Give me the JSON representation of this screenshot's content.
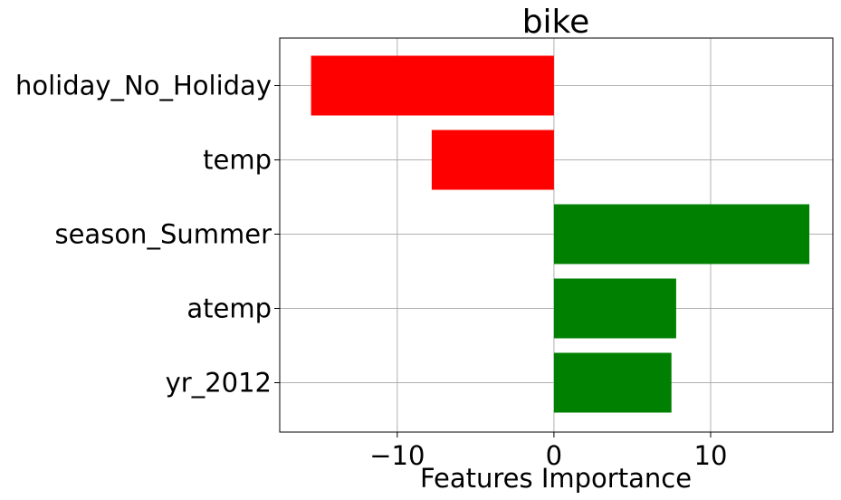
{
  "chart_data": {
    "type": "bar",
    "orientation": "horizontal",
    "title": "bike",
    "xlabel": "Features Importance",
    "ylabel": "",
    "categories": [
      "holiday_No_Holiday",
      "temp",
      "season_Summer",
      "atemp",
      "yr_2012"
    ],
    "values": [
      -15.5,
      -7.8,
      16.3,
      7.8,
      7.5
    ],
    "xlim": [
      -17.5,
      17.8
    ],
    "xticks": [
      -10,
      0,
      10
    ],
    "xtick_labels": [
      "−10",
      "0",
      "10"
    ],
    "grid": true,
    "colors": {
      "positive": "#008000",
      "negative": "#ff0000",
      "grid": "#b0b0b0",
      "axis": "#000000"
    }
  }
}
